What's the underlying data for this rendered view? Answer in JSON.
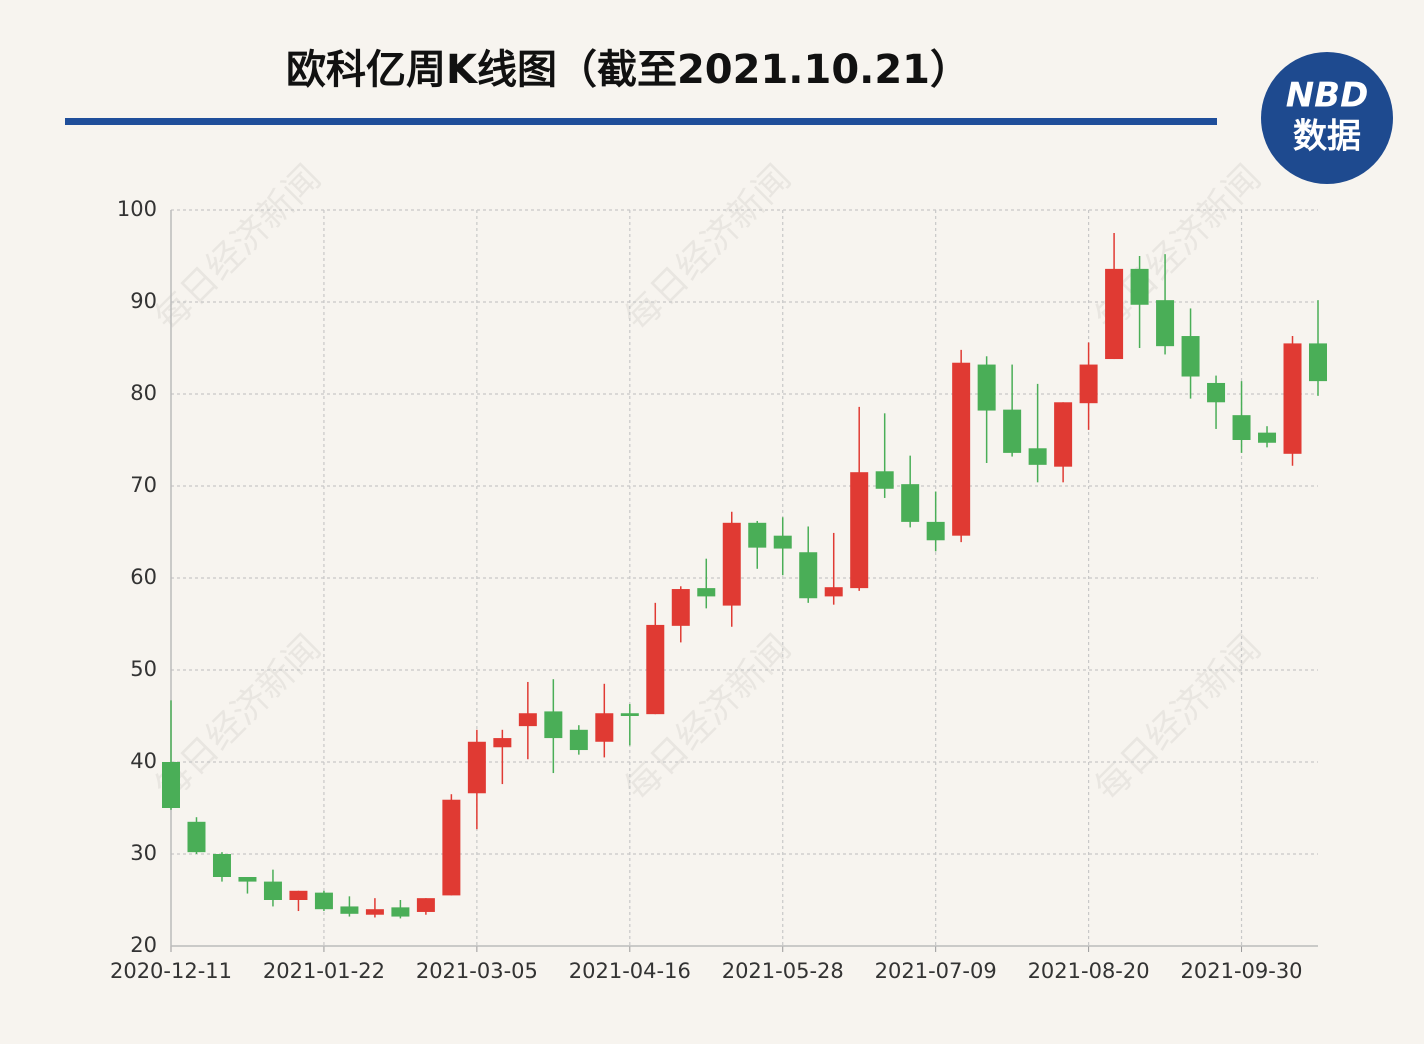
{
  "chart_data": {
    "type": "candlestick",
    "title": "欧科亿周K线图（截至2021.10.21）",
    "logo": {
      "top": "NBD",
      "bottom": "数据"
    },
    "watermark": "每日经济新闻",
    "categories": [
      "2020-12-11",
      null,
      null,
      null,
      null,
      null,
      "2021-01-22",
      null,
      null,
      null,
      null,
      null,
      "2021-03-05",
      null,
      null,
      null,
      null,
      null,
      "2021-04-16",
      null,
      null,
      null,
      null,
      null,
      "2021-05-28",
      null,
      null,
      null,
      null,
      null,
      "2021-07-09",
      null,
      null,
      null,
      null,
      null,
      "2021-08-20",
      null,
      null,
      null,
      null,
      null,
      "2021-09-30",
      null,
      null,
      null
    ],
    "open": [
      40,
      33.5,
      30,
      27.5,
      27,
      25,
      25.8,
      24.3,
      23.4,
      24.2,
      23.7,
      25.5,
      36.6,
      41.6,
      43.9,
      45.5,
      43.5,
      42.2,
      45.3,
      45.2,
      54.8,
      58.9,
      57,
      66,
      64.6,
      62.8,
      58,
      58.9,
      71.6,
      70.2,
      66.1,
      64.6,
      83.2,
      78.3,
      74.1,
      72.1,
      79,
      83.8,
      93.6,
      90.2,
      86.3,
      81.2,
      77.7,
      75.8,
      73.5,
      85.5
    ],
    "high": [
      46.7,
      34,
      30.2,
      27.5,
      28.3,
      26,
      26,
      25.4,
      25.2,
      25,
      25.2,
      36.5,
      43.5,
      43.5,
      48.7,
      49,
      44,
      48.5,
      46.3,
      57.3,
      59.1,
      62.1,
      67.2,
      66.2,
      66.6,
      65.6,
      64.9,
      78.6,
      77.9,
      73.3,
      69.4,
      84.8,
      84.1,
      83.2,
      81.1,
      79.1,
      85.6,
      97.5,
      95,
      95.2,
      89.3,
      82,
      81.4,
      76.5,
      86.3,
      90.2
    ],
    "low": [
      34.8,
      30,
      27,
      25.7,
      24.3,
      23.8,
      23.8,
      23.2,
      23.1,
      23,
      23.4,
      25.5,
      32.7,
      37.6,
      40.3,
      38.8,
      40.8,
      40.5,
      41.8,
      45.2,
      53,
      56.7,
      54.7,
      61,
      60.3,
      57.3,
      57.1,
      58.6,
      68.7,
      65.5,
      62.9,
      63.9,
      72.5,
      73.2,
      70.4,
      70.4,
      76.1,
      83.8,
      85,
      84.3,
      79.5,
      76.2,
      73.6,
      74.2,
      72.2,
      79.8
    ],
    "close": [
      35,
      30.2,
      27.5,
      27,
      25,
      26,
      24,
      23.5,
      24,
      23.2,
      25.2,
      35.9,
      42.2,
      42.6,
      45.3,
      42.6,
      41.3,
      45.3,
      45,
      54.9,
      58.8,
      58,
      66,
      63.3,
      63.2,
      57.8,
      59,
      71.5,
      69.7,
      66.1,
      64.1,
      83.4,
      78.2,
      73.6,
      72.3,
      79.1,
      83.2,
      93.6,
      89.7,
      85.2,
      81.9,
      79.1,
      75,
      74.7,
      85.5,
      81.4
    ],
    "up_color": "#e03a33",
    "down_color": "#4aae57",
    "ylim": [
      20,
      100
    ],
    "yticks": [
      20,
      30,
      40,
      50,
      60,
      70,
      80,
      90,
      100
    ],
    "grid": true
  }
}
